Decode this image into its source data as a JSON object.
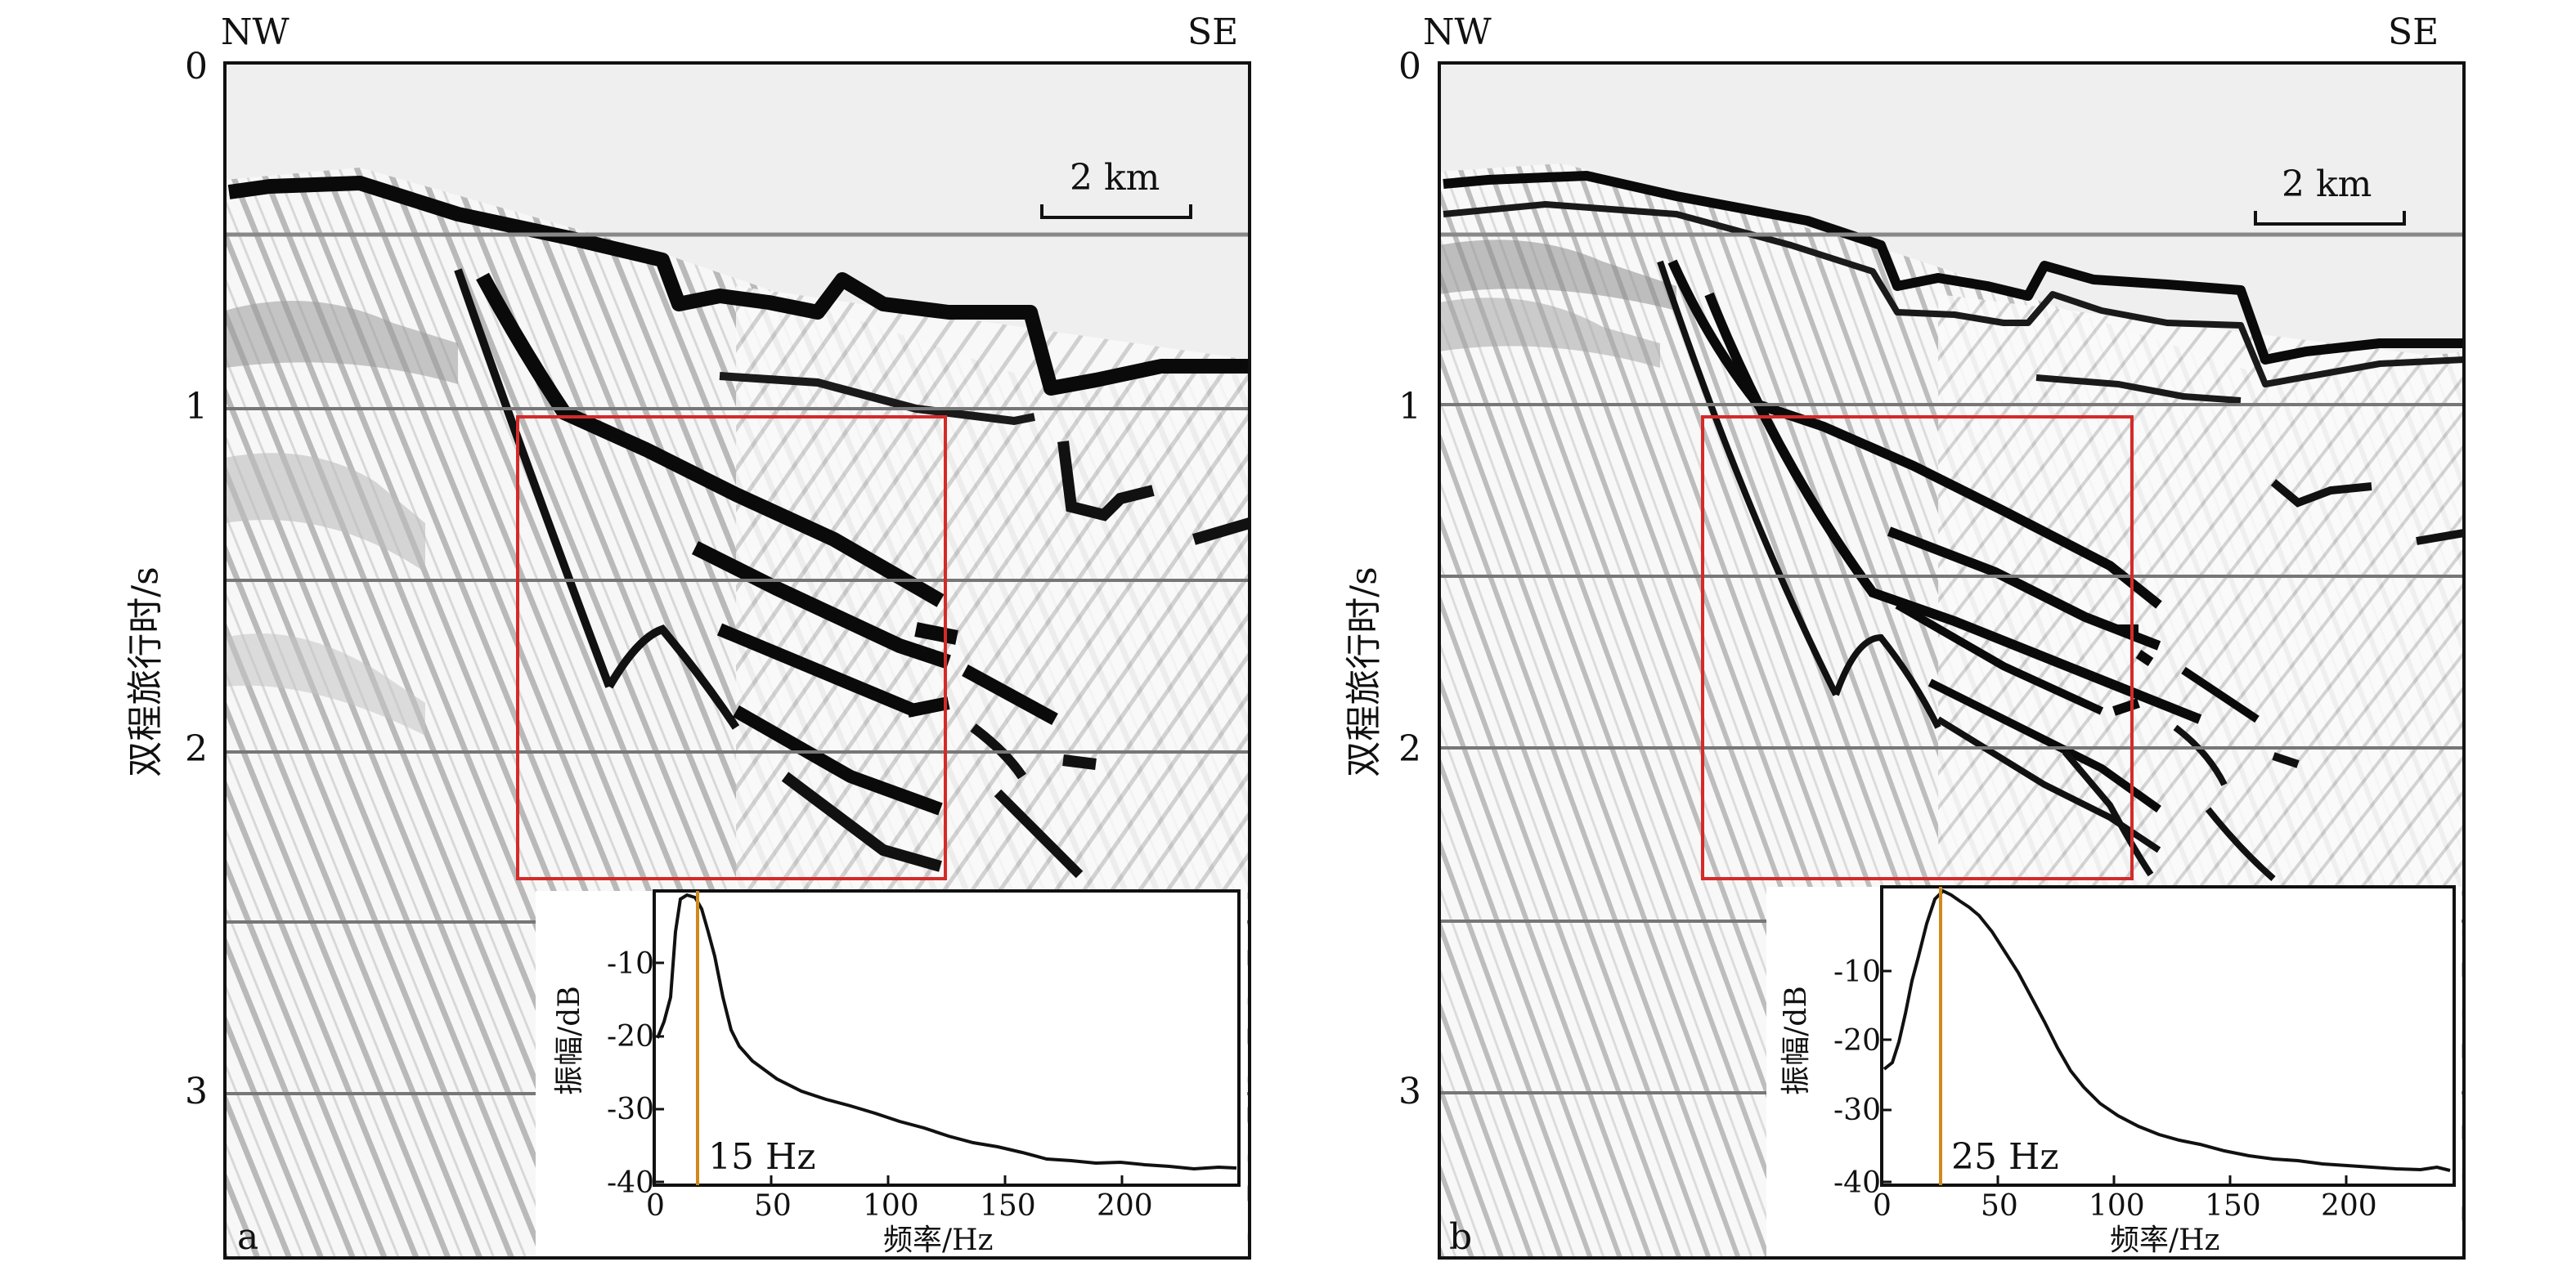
{
  "panels": [
    {
      "id": "a",
      "corner_label": "a",
      "left_direction": "NW",
      "right_direction": "SE",
      "y_axis_label": "双程旅行时/s",
      "y_ticks": [
        "0",
        "1",
        "2",
        "3"
      ],
      "scale_bar_label": "2 km",
      "inset": {
        "y_label": "振幅/dB",
        "x_label": "频率/Hz",
        "y_ticks": [
          "-10",
          "-20",
          "-30",
          "-40"
        ],
        "x_ticks": [
          "0",
          "50",
          "100",
          "150",
          "200"
        ],
        "peak_label": "15 Hz",
        "peak_frequency_hz": 15
      }
    },
    {
      "id": "b",
      "corner_label": "b",
      "left_direction": "NW",
      "right_direction": "SE",
      "y_axis_label": "双程旅行时/s",
      "y_ticks": [
        "0",
        "1",
        "2",
        "3"
      ],
      "scale_bar_label": "2 km",
      "inset": {
        "y_label": "振幅/dB",
        "x_label": "频率/Hz",
        "y_ticks": [
          "-10",
          "-20",
          "-30",
          "-40"
        ],
        "x_ticks": [
          "0",
          "50",
          "100",
          "150",
          "200"
        ],
        "peak_label": "25 Hz",
        "peak_frequency_hz": 25
      }
    }
  ],
  "colors": {
    "highlight_box": "#d42a2a",
    "peak_marker": "#d08a1a",
    "reflector": "#0a0a0a",
    "background_water": "#efefef"
  }
}
